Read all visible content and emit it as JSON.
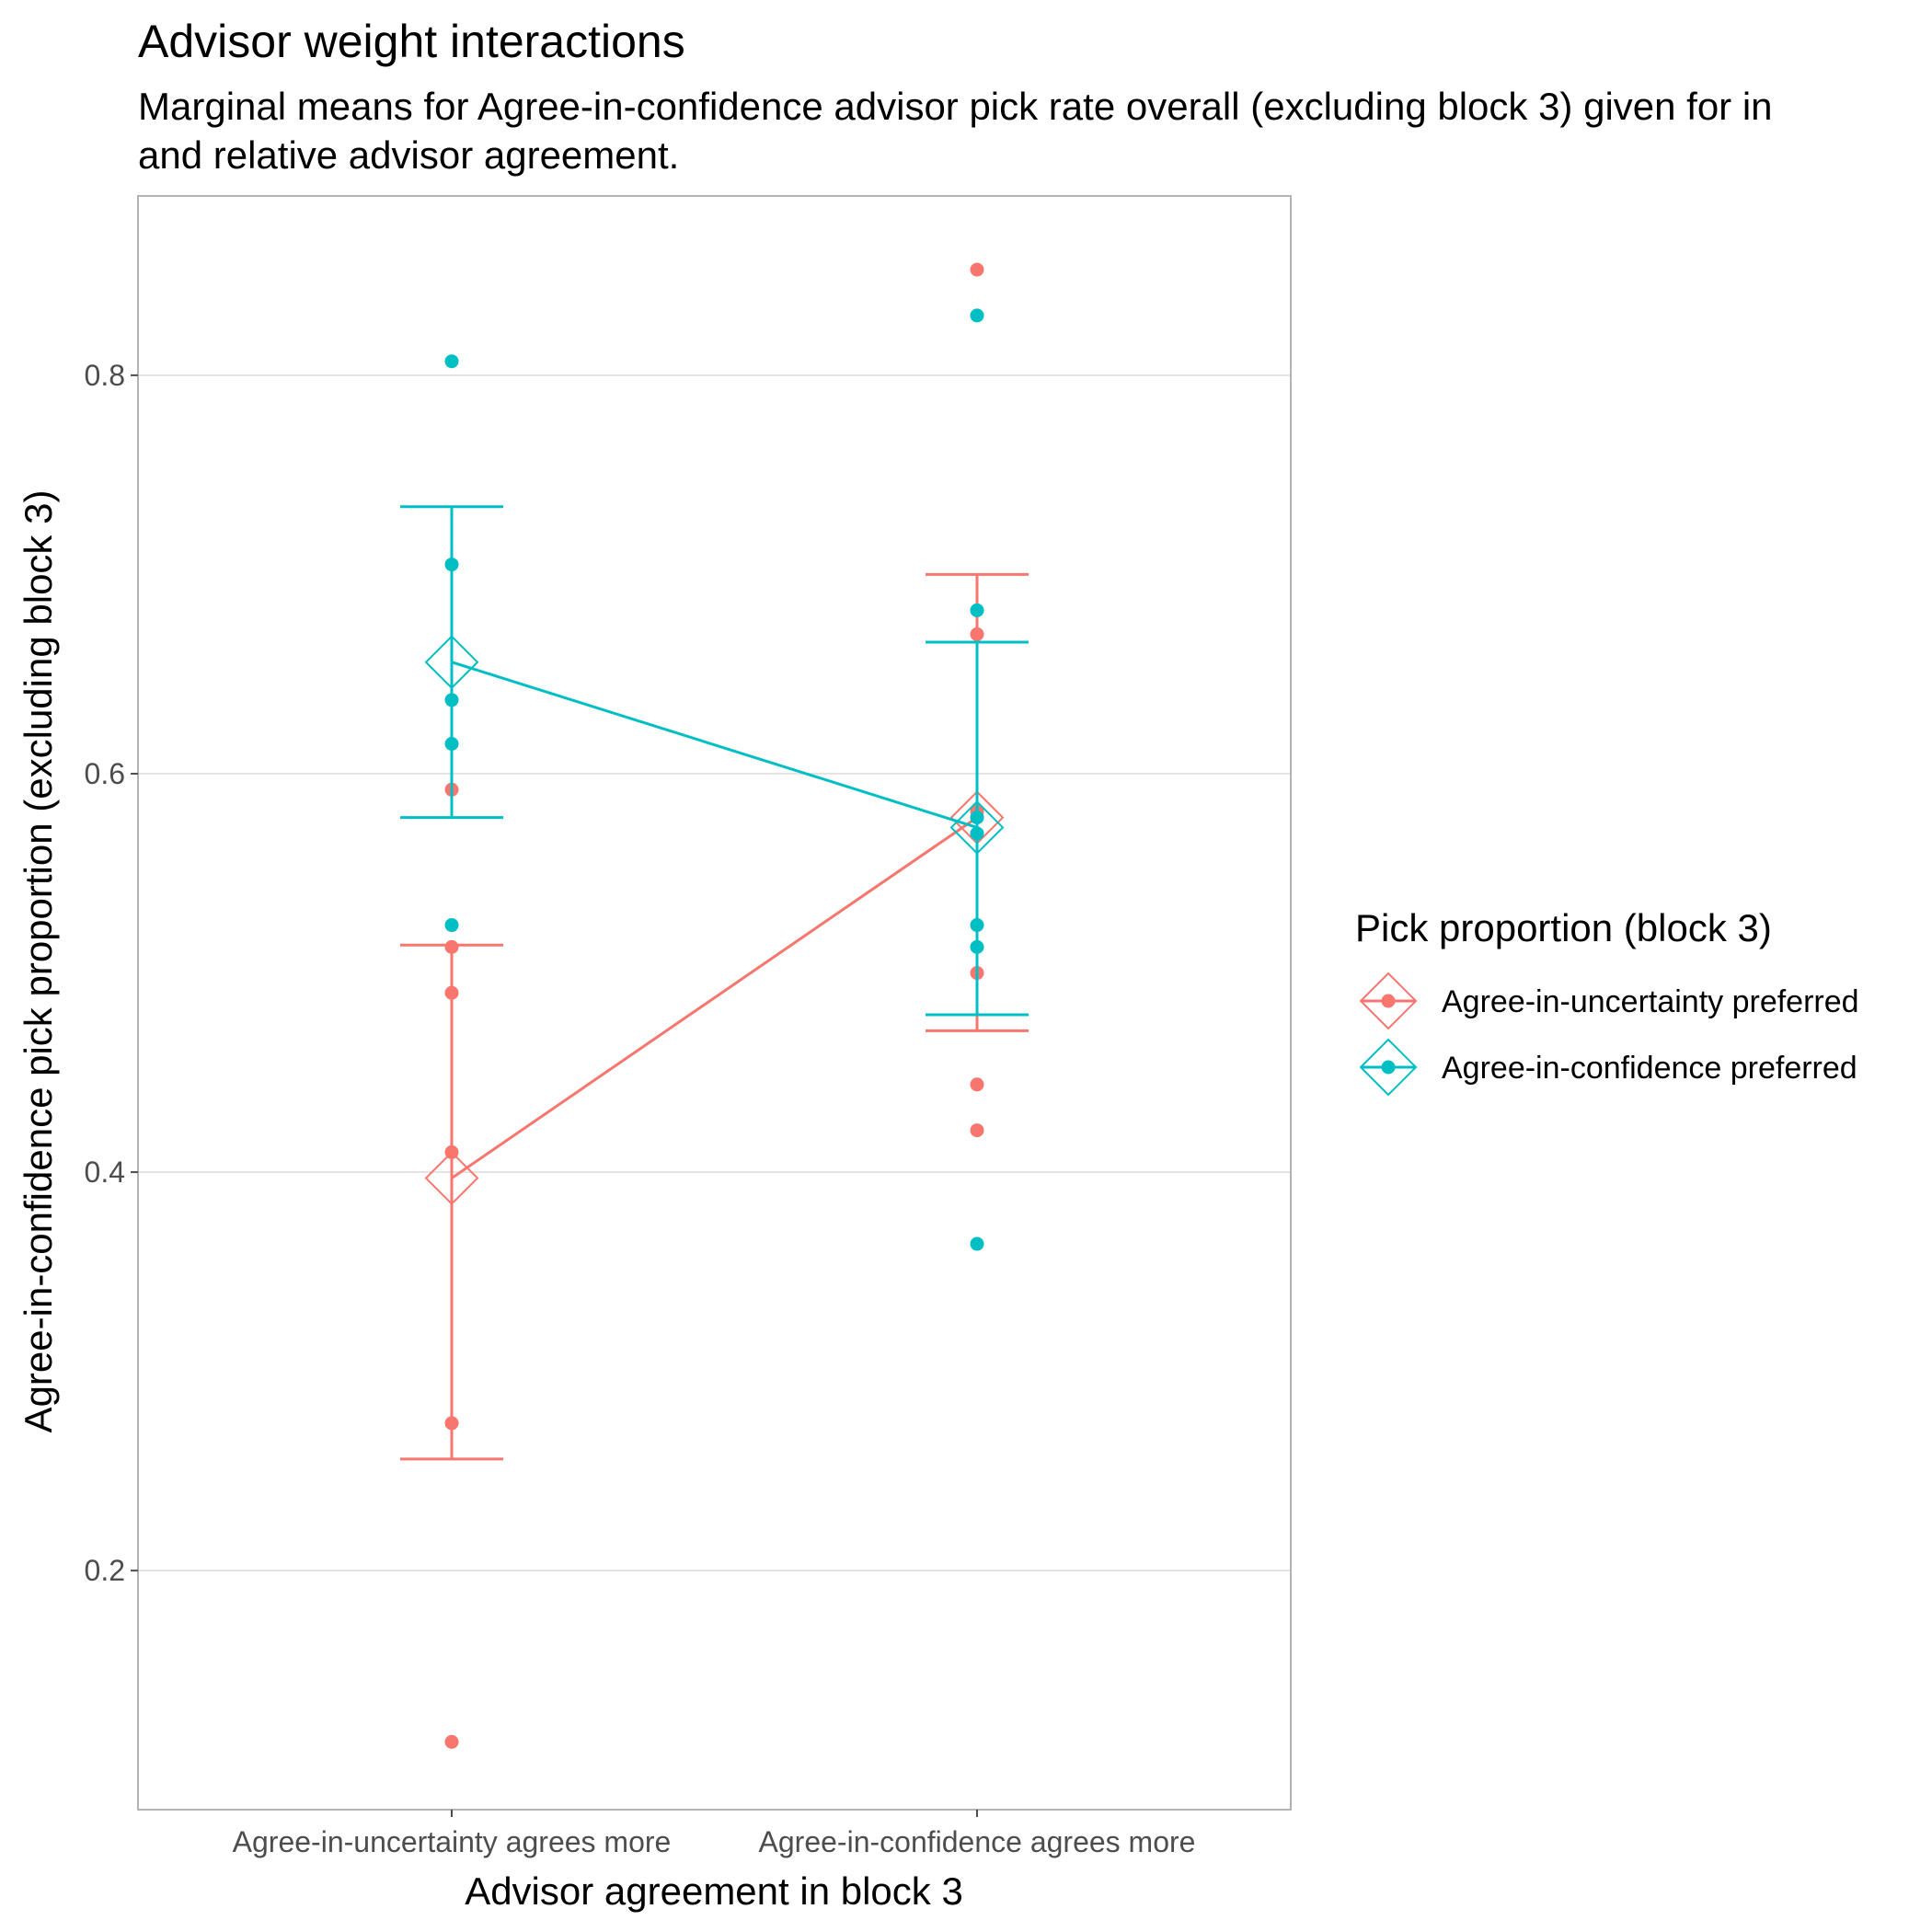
{
  "chart_data": {
    "type": "scatter",
    "title": "Advisor weight interactions",
    "subtitle_lines": [
      "Marginal means for Agree-in-confidence advisor pick rate overall (excluding block 3) given for in",
      "and relative advisor agreement."
    ],
    "xlabel": "Advisor agreement in block 3",
    "ylabel": "Agree-in-confidence pick proportion (excluding block 3)",
    "categories": [
      "Agree-in-uncertainty agrees more",
      "Agree-in-confidence agrees more"
    ],
    "ylim": [
      0.08,
      0.89
    ],
    "yticks": [
      0.2,
      0.4,
      0.6,
      0.8
    ],
    "ytick_labels": [
      "0.2",
      "0.4",
      "0.6",
      "0.8"
    ],
    "grid": true,
    "legend": {
      "title": "Pick proportion (block 3)",
      "position": "right"
    },
    "series": [
      {
        "name": "Agree-in-uncertainty preferred",
        "color": "#F8766D",
        "points": [
          {
            "x": 0,
            "y": 0.592
          },
          {
            "x": 0,
            "y": 0.513
          },
          {
            "x": 0,
            "y": 0.49
          },
          {
            "x": 0,
            "y": 0.41
          },
          {
            "x": 0,
            "y": 0.274
          },
          {
            "x": 0,
            "y": 0.114
          },
          {
            "x": 1,
            "y": 0.853
          },
          {
            "x": 1,
            "y": 0.67
          },
          {
            "x": 1,
            "y": 0.581
          },
          {
            "x": 1,
            "y": 0.5
          },
          {
            "x": 1,
            "y": 0.444
          },
          {
            "x": 1,
            "y": 0.421
          }
        ],
        "means": [
          0.397,
          0.578
        ],
        "ci_low": [
          0.256,
          0.471
        ],
        "ci_high": [
          0.514,
          0.7
        ]
      },
      {
        "name": "Agree-in-confidence preferred",
        "color": "#00BFC4",
        "points": [
          {
            "x": 0,
            "y": 0.807
          },
          {
            "x": 0,
            "y": 0.705
          },
          {
            "x": 0,
            "y": 0.637
          },
          {
            "x": 0,
            "y": 0.615
          },
          {
            "x": 0,
            "y": 0.524
          },
          {
            "x": 1,
            "y": 0.83
          },
          {
            "x": 1,
            "y": 0.682
          },
          {
            "x": 1,
            "y": 0.578
          },
          {
            "x": 1,
            "y": 0.57
          },
          {
            "x": 1,
            "y": 0.524
          },
          {
            "x": 1,
            "y": 0.513
          },
          {
            "x": 1,
            "y": 0.364
          }
        ],
        "means": [
          0.656,
          0.573
        ],
        "ci_low": [
          0.578,
          0.479
        ],
        "ci_high": [
          0.734,
          0.666
        ]
      }
    ]
  }
}
